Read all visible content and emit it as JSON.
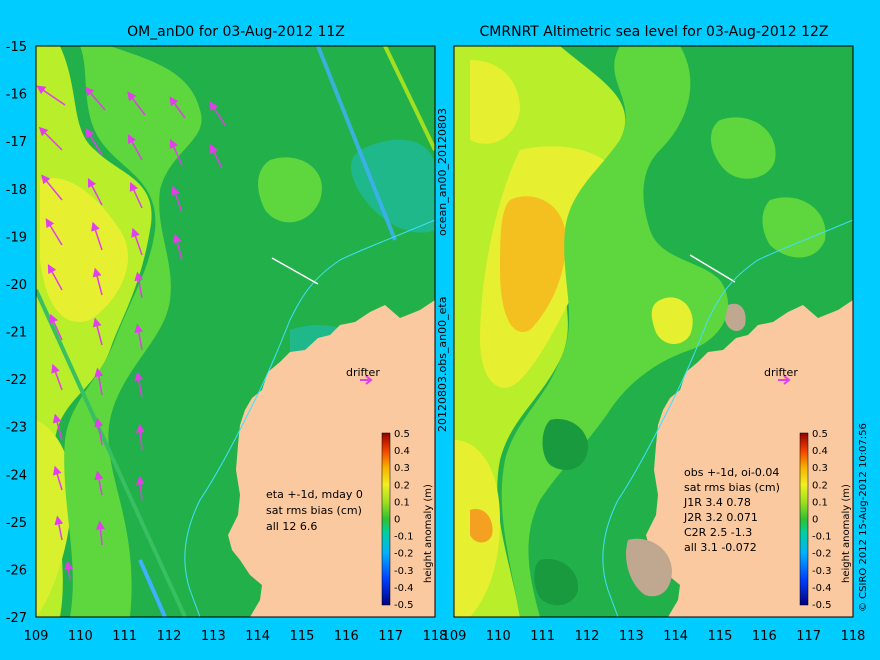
{
  "left_panel": {
    "title": "OM_anD0 for 03-Aug-2012 11Z",
    "y_ticks": [
      "-15",
      "-16",
      "-17",
      "-18",
      "-19",
      "-20",
      "-21",
      "-22",
      "-23",
      "-24",
      "-25",
      "-26",
      "-27"
    ],
    "x_ticks": [
      "109",
      "110",
      "111",
      "112",
      "113",
      "114",
      "115",
      "116",
      "117",
      "118"
    ],
    "drifter_label": "drifter",
    "stats": [
      "eta +-1d, mday 0",
      "sat rms bias (cm)",
      "all 12 6.6"
    ],
    "colorbar_ticks": [
      "0.5",
      "0.4",
      "0.3",
      "0.2",
      "0.1",
      "0",
      "-0.1",
      "-0.2",
      "-0.3",
      "-0.4",
      "-0.5"
    ],
    "colorbar_label": "height anomaly (m)"
  },
  "right_panel": {
    "title": "CMRNRT Altimetric sea level  for 03-Aug-2012 12Z",
    "x_ticks": [
      "109",
      "110",
      "111",
      "112",
      "113",
      "114",
      "115",
      "116",
      "117",
      "118"
    ],
    "drifter_label": "drifter",
    "stats": [
      "obs +-1d, oi-0.04",
      "sat rms bias (cm)",
      "J1R   3.4  0.78",
      "J2R   3.2  0.071",
      "C2R    2.5  -1.3",
      "all  3.1  -0.072"
    ],
    "colorbar_ticks": [
      "0.5",
      "0.4",
      "0.3",
      "0.2",
      "0.1",
      "0",
      "-0.1",
      "-0.2",
      "-0.3",
      "-0.4",
      "-0.5"
    ],
    "colorbar_label": "height anomaly (m)"
  },
  "side_labels": {
    "between_top": "ocean_an00_20120803",
    "between_bottom": "20120803.obs_an00_eta",
    "right_edge": "© CSIRO 2012   15-Aug-2012 10:07:56"
  },
  "colors": {
    "background": "#00ccff",
    "land": "#fbc9a0",
    "ocean_green": "#22b04b",
    "ocean_light_green": "#5ed63e",
    "yellow_green": "#b8ee2a",
    "yellow": "#e6f030",
    "orange": "#f4c020",
    "arrows": "#e040e8",
    "track": "#40b0ff"
  }
}
